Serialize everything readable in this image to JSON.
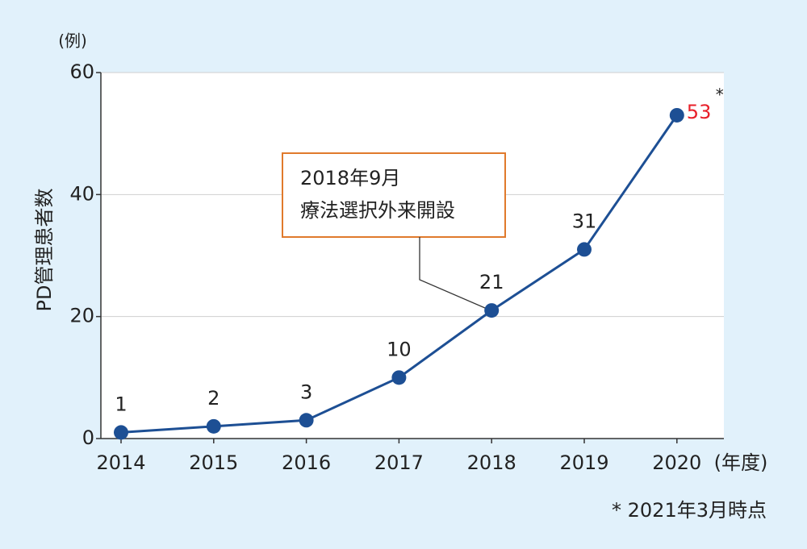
{
  "chart_data": {
    "type": "line",
    "y_label": "PD管理患者数",
    "y_unit": "(例)",
    "x_unit": "(年度)",
    "categories": [
      "2014",
      "2015",
      "2016",
      "2017",
      "2018",
      "2019",
      "2020"
    ],
    "series": [
      {
        "color": "#1d4f94",
        "values": [
          1,
          2,
          3,
          10,
          21,
          31,
          53
        ],
        "value_label_colors": [
          "#222222",
          "#222222",
          "#222222",
          "#222222",
          "#222222",
          "#222222",
          "#e8202a"
        ]
      }
    ],
    "ylim": [
      0,
      60
    ],
    "yticks": [
      0,
      20,
      40,
      60
    ],
    "grid": true,
    "note_mark": "*",
    "annotation": {
      "lines": [
        "2018年9月",
        "療法選択外来開設"
      ],
      "x": "2018",
      "border_color": "#e07a2c"
    },
    "footnote": "* 2021年3月時点"
  }
}
